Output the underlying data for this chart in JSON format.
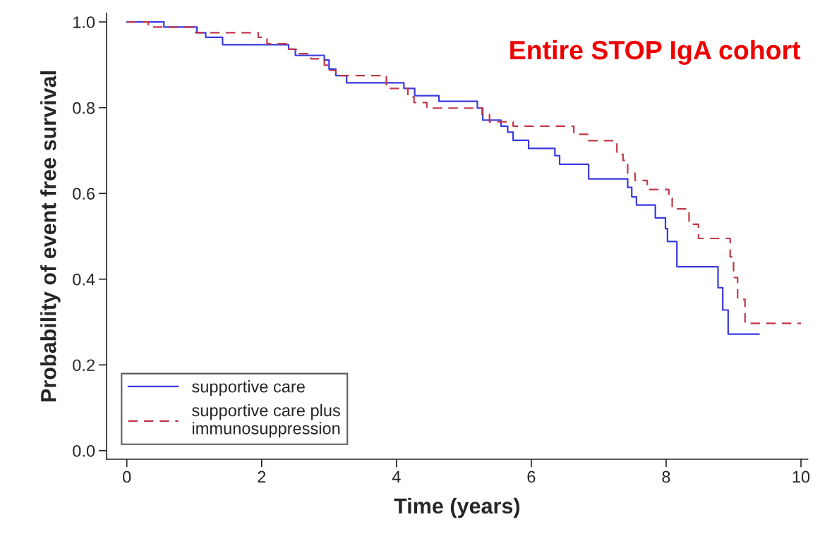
{
  "chart_data": {
    "type": "step",
    "xlabel": "Time (years)",
    "ylabel": "Probability of event free survival",
    "annotations": [
      "Entire STOP IgA cohort"
    ],
    "xlim": [
      -0.3,
      10.1
    ],
    "xticks": [
      0,
      2,
      4,
      6,
      8,
      10
    ],
    "ylim": [
      -0.02,
      1.02
    ],
    "yticks": [
      {
        "value": 0,
        "label": "0.0"
      },
      0.2,
      0.4,
      0.6,
      0.8,
      {
        "value": 1,
        "label": "1.0"
      }
    ],
    "grid": false,
    "legend": "bottom left",
    "marker": "none",
    "series": [
      {
        "name": "supportive care",
        "color": "#3a3ae0",
        "line_style": "solid",
        "x": [
          0,
          0.55,
          1.04,
          1.17,
          1.42,
          2.4,
          2.5,
          2.93,
          3.0,
          3.1,
          3.26,
          4.11,
          4.27,
          4.63,
          5.2,
          5.28,
          5.55,
          5.65,
          5.73,
          5.96,
          6.35,
          6.42,
          6.85,
          7.43,
          7.49,
          7.56,
          7.84,
          7.99,
          8.02,
          8.16,
          8.77,
          8.84,
          8.92,
          9.38
        ],
        "values": [
          1.0,
          0.988,
          0.975,
          0.964,
          0.947,
          0.936,
          0.922,
          0.911,
          0.89,
          0.875,
          0.858,
          0.845,
          0.828,
          0.815,
          0.799,
          0.771,
          0.757,
          0.743,
          0.724,
          0.705,
          0.688,
          0.668,
          0.634,
          0.614,
          0.592,
          0.573,
          0.543,
          0.518,
          0.488,
          0.429,
          0.38,
          0.328,
          0.272,
          0.272
        ]
      },
      {
        "name": "supportive care plus\nimmunosuppression",
        "color": "#c0394a",
        "line_style": "dashed",
        "x": [
          0,
          0.32,
          1.02,
          1.95,
          2.08,
          2.4,
          2.56,
          2.73,
          2.93,
          3.0,
          3.1,
          3.85,
          4.17,
          4.26,
          4.45,
          5.27,
          5.38,
          5.73,
          6.63,
          6.85,
          7.27,
          7.36,
          7.43,
          7.54,
          7.72,
          8.04,
          8.09,
          8.34,
          8.48,
          8.95,
          9.0,
          9.06,
          9.17,
          10.0
        ],
        "values": [
          1.0,
          0.988,
          0.975,
          0.964,
          0.949,
          0.936,
          0.926,
          0.914,
          0.899,
          0.887,
          0.875,
          0.845,
          0.825,
          0.812,
          0.799,
          0.784,
          0.767,
          0.757,
          0.738,
          0.723,
          0.691,
          0.677,
          0.647,
          0.63,
          0.609,
          0.589,
          0.564,
          0.528,
          0.495,
          0.452,
          0.404,
          0.353,
          0.297,
          0.297
        ]
      }
    ]
  }
}
